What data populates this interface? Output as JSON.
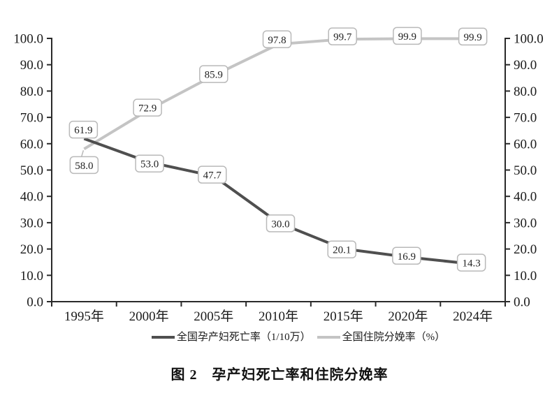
{
  "figure": {
    "caption": "图 2　孕产妇死亡率和住院分娩率"
  },
  "legend": {
    "position": "bottom",
    "items": [
      {
        "label": "全国孕产妇死亡率（1/10万）",
        "color": "#4f4f4f"
      },
      {
        "label": "全国住院分娩率（%）",
        "color": "#c4c4c4"
      }
    ]
  },
  "colors": {
    "axis": "#2a2a2a",
    "tick_text": "#1a1a1a",
    "label_box_fill": "#ffffff",
    "label_box_border": "#b9b9b9",
    "label_text": "#1f1f1f"
  },
  "chart_data": {
    "type": "line",
    "title": "图 2　孕产妇死亡率和住院分娩率",
    "xlabel": "",
    "ylabel": "",
    "categories": [
      "1995年",
      "2000年",
      "2005年",
      "2010年",
      "2015年",
      "2020年",
      "2024年"
    ],
    "series": [
      {
        "name": "全国孕产妇死亡率（1/10万）",
        "color": "#4f4f4f",
        "values": [
          61.9,
          53.0,
          47.7,
          30.0,
          20.1,
          16.9,
          14.3
        ],
        "label_offsets": [
          [
            -1,
            -13
          ],
          [
            1,
            2
          ],
          [
            -2,
            -2
          ],
          [
            3,
            1
          ],
          [
            -2,
            1
          ],
          [
            -2,
            -2
          ],
          [
            -2,
            -2
          ]
        ],
        "connector_point": -1
      },
      {
        "name": "全国住院分娩率（%）",
        "color": "#c4c4c4",
        "values": [
          58.0,
          72.9,
          85.9,
          97.8,
          99.7,
          99.9,
          99.9
        ],
        "label_offsets": [
          [
            0,
            23
          ],
          [
            -2,
            -3
          ],
          [
            0,
            -2
          ],
          [
            -2,
            -7
          ],
          [
            -1,
            -4
          ],
          [
            -1,
            -4
          ],
          [
            0,
            -3
          ]
        ],
        "connector_point": 0
      }
    ],
    "ylim": [
      0,
      100
    ],
    "ytick_step": 10,
    "ytick_decimals": 1,
    "dual_axis": true,
    "grid": false,
    "data_labels": true,
    "legend_position": "bottom"
  }
}
